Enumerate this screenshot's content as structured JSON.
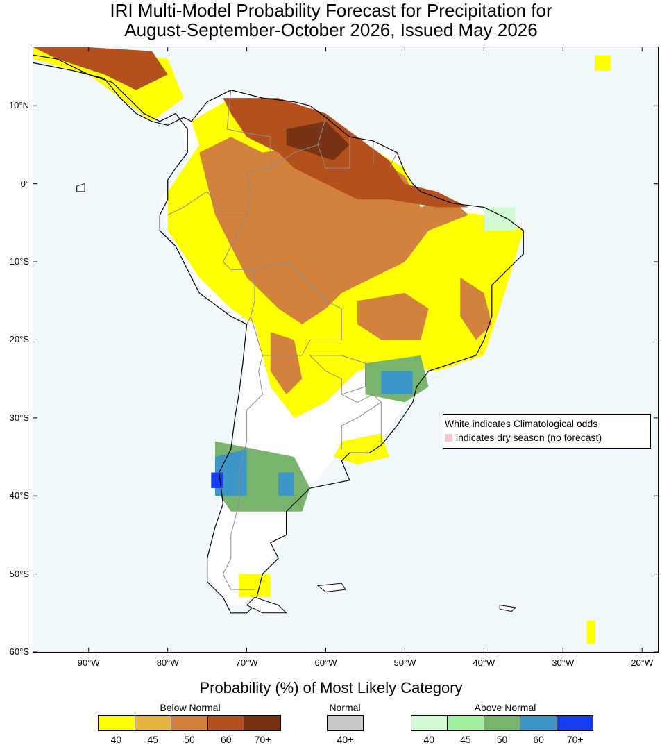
{
  "title": {
    "line1": "IRI Multi-Model Probability Forecast for Precipitation for",
    "line2": "August-September-October 2026, Issued May 2026"
  },
  "axes": {
    "lat_labels": [
      "10°N",
      "0°",
      "10°S",
      "20°S",
      "30°S",
      "40°S",
      "50°S",
      "60°S"
    ],
    "lat_values": [
      10,
      0,
      -10,
      -20,
      -30,
      -40,
      -50,
      -60
    ],
    "lon_labels": [
      "90°W",
      "80°W",
      "70°W",
      "60°W",
      "50°W",
      "40°W",
      "30°W",
      "20°W"
    ],
    "lon_values": [
      -90,
      -80,
      -70,
      -60,
      -50,
      -40,
      -30,
      -20
    ],
    "lon_range": [
      -97,
      -18
    ],
    "lat_range": [
      -60,
      17.5
    ]
  },
  "note": {
    "line1": "White indicates Climatological odds",
    "line2": "indicates dry season (no forecast)",
    "dry_color": "#f5c6cc"
  },
  "legend": {
    "title": "Probability (%) of Most Likely Category",
    "below": {
      "label": "Below Normal",
      "colors": [
        "#ffff00",
        "#e6b43c",
        "#d2823c",
        "#b4501e",
        "#783214"
      ],
      "ticks": [
        "40",
        "45",
        "50",
        "60",
        "70+"
      ]
    },
    "normal": {
      "label": "Normal",
      "colors": [
        "#c8c8c8"
      ],
      "ticks": [
        "40+"
      ]
    },
    "above": {
      "label": "Above Normal",
      "colors": [
        "#d2fad2",
        "#a0f0a0",
        "#78b46e",
        "#3c96c8",
        "#143cf0"
      ],
      "ticks": [
        "40",
        "45",
        "50",
        "60",
        "70+"
      ]
    }
  },
  "colors": {
    "ocean": "#f0f8fc",
    "climatology": "#ffffff",
    "coast": "#000000",
    "border": "#8c8c8c"
  },
  "forecast_regions": [
    {
      "c": "#ffffff",
      "p": [
        [
          -79,
          9
        ],
        [
          -77,
          8
        ],
        [
          -73,
          12
        ],
        [
          -65,
          11
        ],
        [
          -60,
          9
        ],
        [
          -55,
          6
        ],
        [
          -51,
          4
        ],
        [
          -50,
          0
        ],
        [
          -44,
          -2
        ],
        [
          -35,
          -5
        ],
        [
          -39,
          -13
        ],
        [
          -41,
          -22
        ],
        [
          -48,
          -25
        ],
        [
          -53,
          -33
        ],
        [
          -58,
          -34
        ],
        [
          -62,
          -39
        ],
        [
          -65,
          -41
        ],
        [
          -65,
          -45
        ],
        [
          -68,
          -50
        ],
        [
          -68,
          -54
        ],
        [
          -72,
          -54
        ],
        [
          -75,
          -50
        ],
        [
          -74,
          -43
        ],
        [
          -72,
          -37
        ],
        [
          -71,
          -30
        ],
        [
          -70,
          -18
        ],
        [
          -75,
          -15
        ],
        [
          -80,
          -6
        ],
        [
          -81,
          -2
        ],
        [
          -77,
          3
        ]
      ]
    },
    {
      "c": "#ffff00",
      "p": [
        [
          -80,
          -1
        ],
        [
          -76,
          5
        ],
        [
          -77,
          8
        ],
        [
          -72,
          11
        ],
        [
          -65,
          10
        ],
        [
          -60,
          8
        ],
        [
          -55,
          5
        ],
        [
          -50,
          2
        ],
        [
          -48,
          -3
        ],
        [
          -40,
          -4
        ],
        [
          -35,
          -6
        ],
        [
          -38,
          -16
        ],
        [
          -40,
          -22
        ],
        [
          -46,
          -24
        ],
        [
          -52,
          -23
        ],
        [
          -56,
          -24
        ],
        [
          -60,
          -28
        ],
        [
          -64,
          -30
        ],
        [
          -67,
          -26
        ],
        [
          -69,
          -18
        ],
        [
          -72,
          -16
        ],
        [
          -76,
          -12
        ],
        [
          -80,
          -6
        ]
      ]
    },
    {
      "c": "#ffff00",
      "p": [
        [
          -89,
          17
        ],
        [
          -80,
          16
        ],
        [
          -78,
          11
        ],
        [
          -82,
          8
        ],
        [
          -86,
          11
        ],
        [
          -90,
          14
        ],
        [
          -97,
          16
        ],
        [
          -97,
          17.5
        ]
      ]
    },
    {
      "c": "#d2823c",
      "p": [
        [
          -76,
          4
        ],
        [
          -72,
          6
        ],
        [
          -68,
          4
        ],
        [
          -62,
          5
        ],
        [
          -55,
          4
        ],
        [
          -50,
          1
        ],
        [
          -48,
          -3
        ],
        [
          -44,
          -2
        ],
        [
          -42,
          -4
        ],
        [
          -47,
          -6
        ],
        [
          -50,
          -10
        ],
        [
          -54,
          -12
        ],
        [
          -58,
          -14
        ],
        [
          -60,
          -16
        ],
        [
          -63,
          -18
        ],
        [
          -66,
          -16
        ],
        [
          -70,
          -12
        ],
        [
          -72,
          -8
        ],
        [
          -74,
          -4
        ],
        [
          -75,
          0
        ]
      ]
    },
    {
      "c": "#d2823c",
      "p": [
        [
          -56,
          -15
        ],
        [
          -50,
          -14
        ],
        [
          -47,
          -16
        ],
        [
          -48,
          -20
        ],
        [
          -53,
          -20
        ],
        [
          -56,
          -18
        ]
      ]
    },
    {
      "c": "#d2823c",
      "p": [
        [
          -43,
          -12
        ],
        [
          -40,
          -14
        ],
        [
          -39,
          -18
        ],
        [
          -41,
          -20
        ],
        [
          -43,
          -17
        ]
      ]
    },
    {
      "c": "#d2823c",
      "p": [
        [
          -67,
          -19
        ],
        [
          -64,
          -20
        ],
        [
          -63,
          -25
        ],
        [
          -65,
          -27
        ],
        [
          -67,
          -24
        ]
      ]
    },
    {
      "c": "#b4501e",
      "p": [
        [
          -73,
          11
        ],
        [
          -66,
          11
        ],
        [
          -60,
          9
        ],
        [
          -56,
          6
        ],
        [
          -52,
          3
        ],
        [
          -50,
          0
        ],
        [
          -46,
          -1
        ],
        [
          -42,
          -3
        ],
        [
          -46,
          -3
        ],
        [
          -52,
          -2
        ],
        [
          -56,
          -2
        ],
        [
          -60,
          0
        ],
        [
          -64,
          2
        ],
        [
          -66,
          4
        ],
        [
          -70,
          6
        ],
        [
          -72,
          9
        ]
      ]
    },
    {
      "c": "#b4501e",
      "p": [
        [
          -90,
          17.5
        ],
        [
          -82,
          17
        ],
        [
          -80,
          14
        ],
        [
          -84,
          12
        ],
        [
          -88,
          14
        ],
        [
          -94,
          16
        ],
        [
          -97,
          17.5
        ]
      ]
    },
    {
      "c": "#783214",
      "p": [
        [
          -65,
          7
        ],
        [
          -60,
          8
        ],
        [
          -57,
          5
        ],
        [
          -59,
          3
        ],
        [
          -62,
          4
        ],
        [
          -65,
          5
        ]
      ]
    },
    {
      "c": "#78b46e",
      "p": [
        [
          -55,
          -23
        ],
        [
          -48,
          -22
        ],
        [
          -47,
          -26
        ],
        [
          -50,
          -28
        ],
        [
          -55,
          -27
        ]
      ]
    },
    {
      "c": "#3c96c8",
      "p": [
        [
          -53,
          -24
        ],
        [
          -49,
          -24
        ],
        [
          -49,
          -27
        ],
        [
          -53,
          -27
        ]
      ]
    },
    {
      "c": "#78b46e",
      "p": [
        [
          -74,
          -33
        ],
        [
          -69,
          -34
        ],
        [
          -64,
          -35
        ],
        [
          -62,
          -39
        ],
        [
          -63,
          -42
        ],
        [
          -68,
          -42
        ],
        [
          -72,
          -42
        ],
        [
          -74,
          -39
        ]
      ]
    },
    {
      "c": "#3c96c8",
      "p": [
        [
          -74,
          -35
        ],
        [
          -70,
          -34
        ],
        [
          -70,
          -40
        ],
        [
          -74,
          -40
        ]
      ]
    },
    {
      "c": "#3c96c8",
      "p": [
        [
          -66,
          -37
        ],
        [
          -64,
          -37
        ],
        [
          -64,
          -40
        ],
        [
          -66,
          -40
        ]
      ]
    },
    {
      "c": "#143cf0",
      "p": [
        [
          -74.5,
          -37
        ],
        [
          -73,
          -37
        ],
        [
          -73,
          -39
        ],
        [
          -74.5,
          -39
        ]
      ]
    },
    {
      "c": "#ffff00",
      "p": [
        [
          -58,
          -33
        ],
        [
          -53,
          -32
        ],
        [
          -52,
          -35
        ],
        [
          -56,
          -36
        ],
        [
          -59,
          -35
        ]
      ]
    },
    {
      "c": "#ffff00",
      "p": [
        [
          -71,
          -50
        ],
        [
          -67,
          -50
        ],
        [
          -67,
          -53
        ],
        [
          -71,
          -53
        ]
      ]
    },
    {
      "c": "#d2fad2",
      "p": [
        [
          -40,
          -3
        ],
        [
          -36,
          -3
        ],
        [
          -36,
          -6
        ],
        [
          -40,
          -6
        ]
      ]
    },
    {
      "c": "#ffff00",
      "p": [
        [
          -27,
          -56
        ],
        [
          -26,
          -56
        ],
        [
          -26,
          -59
        ],
        [
          -27,
          -59
        ]
      ]
    },
    {
      "c": "#ffff00",
      "p": [
        [
          -26,
          16.5
        ],
        [
          -24,
          16.5
        ],
        [
          -24,
          14.5
        ],
        [
          -26,
          14.5
        ]
      ]
    }
  ],
  "coastline": [
    [
      -97,
      15.5
    ],
    [
      -92,
      14.5
    ],
    [
      -88,
      13.5
    ],
    [
      -86,
      11
    ],
    [
      -84,
      9
    ],
    [
      -82,
      8
    ],
    [
      -80,
      7.5
    ],
    [
      -78,
      8.5
    ],
    [
      -77,
      8
    ],
    [
      -75,
      10.5
    ],
    [
      -72,
      12
    ],
    [
      -68,
      11
    ],
    [
      -64,
      10.5
    ],
    [
      -62,
      10
    ],
    [
      -60,
      8.5
    ],
    [
      -57,
      6
    ],
    [
      -54,
      5.5
    ],
    [
      -51,
      4
    ],
    [
      -50,
      1.5
    ],
    [
      -49,
      0
    ],
    [
      -48,
      -1
    ],
    [
      -44,
      -2.5
    ],
    [
      -40,
      -3
    ],
    [
      -37,
      -4.5
    ],
    [
      -35,
      -6
    ],
    [
      -35,
      -9
    ],
    [
      -37,
      -11
    ],
    [
      -39,
      -13
    ],
    [
      -39,
      -17
    ],
    [
      -40,
      -20
    ],
    [
      -41,
      -22
    ],
    [
      -44,
      -23
    ],
    [
      -47,
      -24
    ],
    [
      -48.5,
      -26
    ],
    [
      -49,
      -28
    ],
    [
      -51,
      -31
    ],
    [
      -53,
      -33.5
    ],
    [
      -54.5,
      -34.5
    ],
    [
      -57,
      -34.5
    ],
    [
      -58,
      -35.5
    ],
    [
      -57,
      -38
    ],
    [
      -62,
      -39
    ],
    [
      -64,
      -41
    ],
    [
      -65,
      -42
    ],
    [
      -65,
      -45
    ],
    [
      -67,
      -46
    ],
    [
      -66,
      -48
    ],
    [
      -68,
      -50
    ],
    [
      -68.5,
      -52
    ],
    [
      -69,
      -54
    ],
    [
      -70,
      -55
    ],
    [
      -72,
      -55
    ],
    [
      -73,
      -53
    ],
    [
      -75,
      -51
    ],
    [
      -75,
      -48
    ],
    [
      -74,
      -44
    ],
    [
      -73,
      -41
    ],
    [
      -73.5,
      -37
    ],
    [
      -72,
      -34
    ],
    [
      -71.5,
      -30
    ],
    [
      -71,
      -27
    ],
    [
      -70.5,
      -23
    ],
    [
      -70,
      -18
    ],
    [
      -72,
      -17
    ],
    [
      -76,
      -14
    ],
    [
      -77,
      -12
    ],
    [
      -79,
      -8
    ],
    [
      -81,
      -6
    ],
    [
      -81,
      -4
    ],
    [
      -80,
      -2
    ],
    [
      -80,
      0.5
    ],
    [
      -79,
      2
    ],
    [
      -77.5,
      4
    ],
    [
      -77.5,
      7
    ],
    [
      -79,
      9
    ],
    [
      -81,
      8
    ],
    [
      -83,
      9
    ],
    [
      -85,
      11
    ],
    [
      -87,
      13
    ],
    [
      -90,
      14
    ],
    [
      -94,
      16
    ],
    [
      -97,
      16.5
    ]
  ],
  "borders": [
    [
      [
        -72,
        12
      ],
      [
        -72.5,
        7
      ],
      [
        -70,
        6.5
      ],
      [
        -67,
        6
      ],
      [
        -67,
        2
      ],
      [
        -70,
        1.5
      ],
      [
        -69.5,
        -1
      ],
      [
        -70,
        -4
      ],
      [
        -73,
        -4
      ],
      [
        -75,
        -1
      ]
    ],
    [
      [
        -67,
        2
      ],
      [
        -64,
        4
      ],
      [
        -61,
        5
      ],
      [
        -60,
        8.5
      ]
    ],
    [
      [
        -60,
        8.5
      ],
      [
        -61,
        5
      ],
      [
        -60,
        2
      ],
      [
        -57,
        2
      ],
      [
        -57,
        6
      ]
    ],
    [
      [
        -54,
        5.5
      ],
      [
        -54,
        2.5
      ]
    ],
    [
      [
        -52,
        2
      ],
      [
        -51,
        4
      ]
    ],
    [
      [
        -75,
        -1
      ],
      [
        -78,
        -3
      ],
      [
        -80,
        -4
      ]
    ],
    [
      [
        -70,
        -4
      ],
      [
        -73,
        -10
      ],
      [
        -72,
        -11
      ],
      [
        -69,
        -11
      ],
      [
        -69,
        -15
      ],
      [
        -69.5,
        -17
      ],
      [
        -70,
        -18
      ]
    ],
    [
      [
        -69,
        -11
      ],
      [
        -65,
        -10
      ],
      [
        -62,
        -13
      ],
      [
        -60,
        -15
      ],
      [
        -58,
        -16
      ],
      [
        -58,
        -20
      ]
    ],
    [
      [
        -69.5,
        -17
      ],
      [
        -68,
        -22
      ],
      [
        -66,
        -22
      ],
      [
        -63,
        -22
      ],
      [
        -62,
        -20
      ],
      [
        -58,
        -20
      ]
    ],
    [
      [
        -68,
        -22
      ],
      [
        -68.5,
        -24
      ],
      [
        -68,
        -27
      ],
      [
        -70,
        -29
      ],
      [
        -70,
        -33
      ],
      [
        -71,
        -37
      ],
      [
        -71,
        -41
      ],
      [
        -72,
        -45
      ],
      [
        -72,
        -48
      ],
      [
        -73,
        -50
      ],
      [
        -72,
        -52
      ],
      [
        -69,
        -52
      ]
    ],
    [
      [
        -62,
        -22
      ],
      [
        -58,
        -22
      ],
      [
        -55,
        -23
      ],
      [
        -55,
        -26
      ],
      [
        -58,
        -27
      ],
      [
        -58,
        -25
      ],
      [
        -60,
        -24
      ],
      [
        -62,
        -22
      ]
    ],
    [
      [
        -58,
        -27
      ],
      [
        -56,
        -28
      ],
      [
        -54,
        -27
      ],
      [
        -53,
        -28
      ],
      [
        -56,
        -30
      ],
      [
        -58,
        -31
      ],
      [
        -58,
        -34
      ]
    ],
    [
      [
        -53,
        -28
      ],
      [
        -53,
        -33.5
      ]
    ]
  ],
  "islands": [
    [
      [
        -61,
        -51.5
      ],
      [
        -58,
        -51.2
      ],
      [
        -57.5,
        -52
      ],
      [
        -60,
        -52.3
      ]
    ],
    [
      [
        -38,
        -54
      ],
      [
        -36,
        -54.3
      ],
      [
        -36.5,
        -54.8
      ],
      [
        -38,
        -54.5
      ]
    ],
    [
      [
        -91.5,
        -0.3
      ],
      [
        -90.5,
        0
      ],
      [
        -90.5,
        -1
      ],
      [
        -91.5,
        -1
      ]
    ],
    [
      [
        -69,
        -53
      ],
      [
        -66,
        -54
      ],
      [
        -65,
        -55
      ],
      [
        -68,
        -55
      ],
      [
        -70,
        -54
      ]
    ]
  ]
}
